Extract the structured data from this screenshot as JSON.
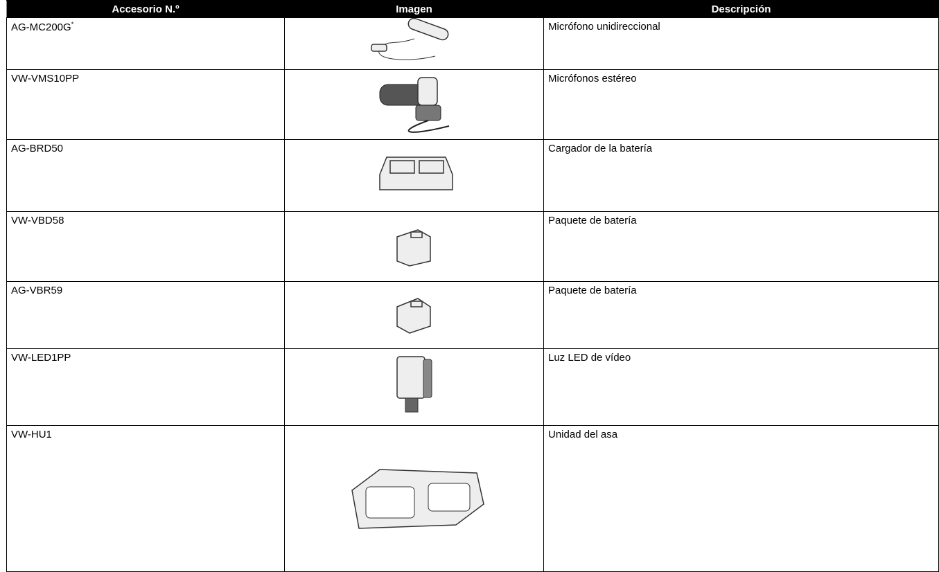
{
  "table": {
    "header": [
      "Accesorio N.º",
      "Imagen",
      "Descripción"
    ],
    "rows": [
      {
        "code": "AG-MC200G",
        "note_mark": "*",
        "description": "Micrófono unidireccional"
      },
      {
        "code": "VW-VMS10PP",
        "description": "Micrófonos estéreo"
      },
      {
        "code": "AG-BRD50",
        "description": "Cargador de la batería"
      },
      {
        "code": "VW-VBD58",
        "description": "Paquete de batería"
      },
      {
        "code": "AG-VBR59",
        "description": "Paquete de batería"
      },
      {
        "code": "VW-LED1PP",
        "description": "Luz LED de vídeo"
      },
      {
        "code": "VW-HU1",
        "description": "Unidad del asa"
      }
    ]
  }
}
